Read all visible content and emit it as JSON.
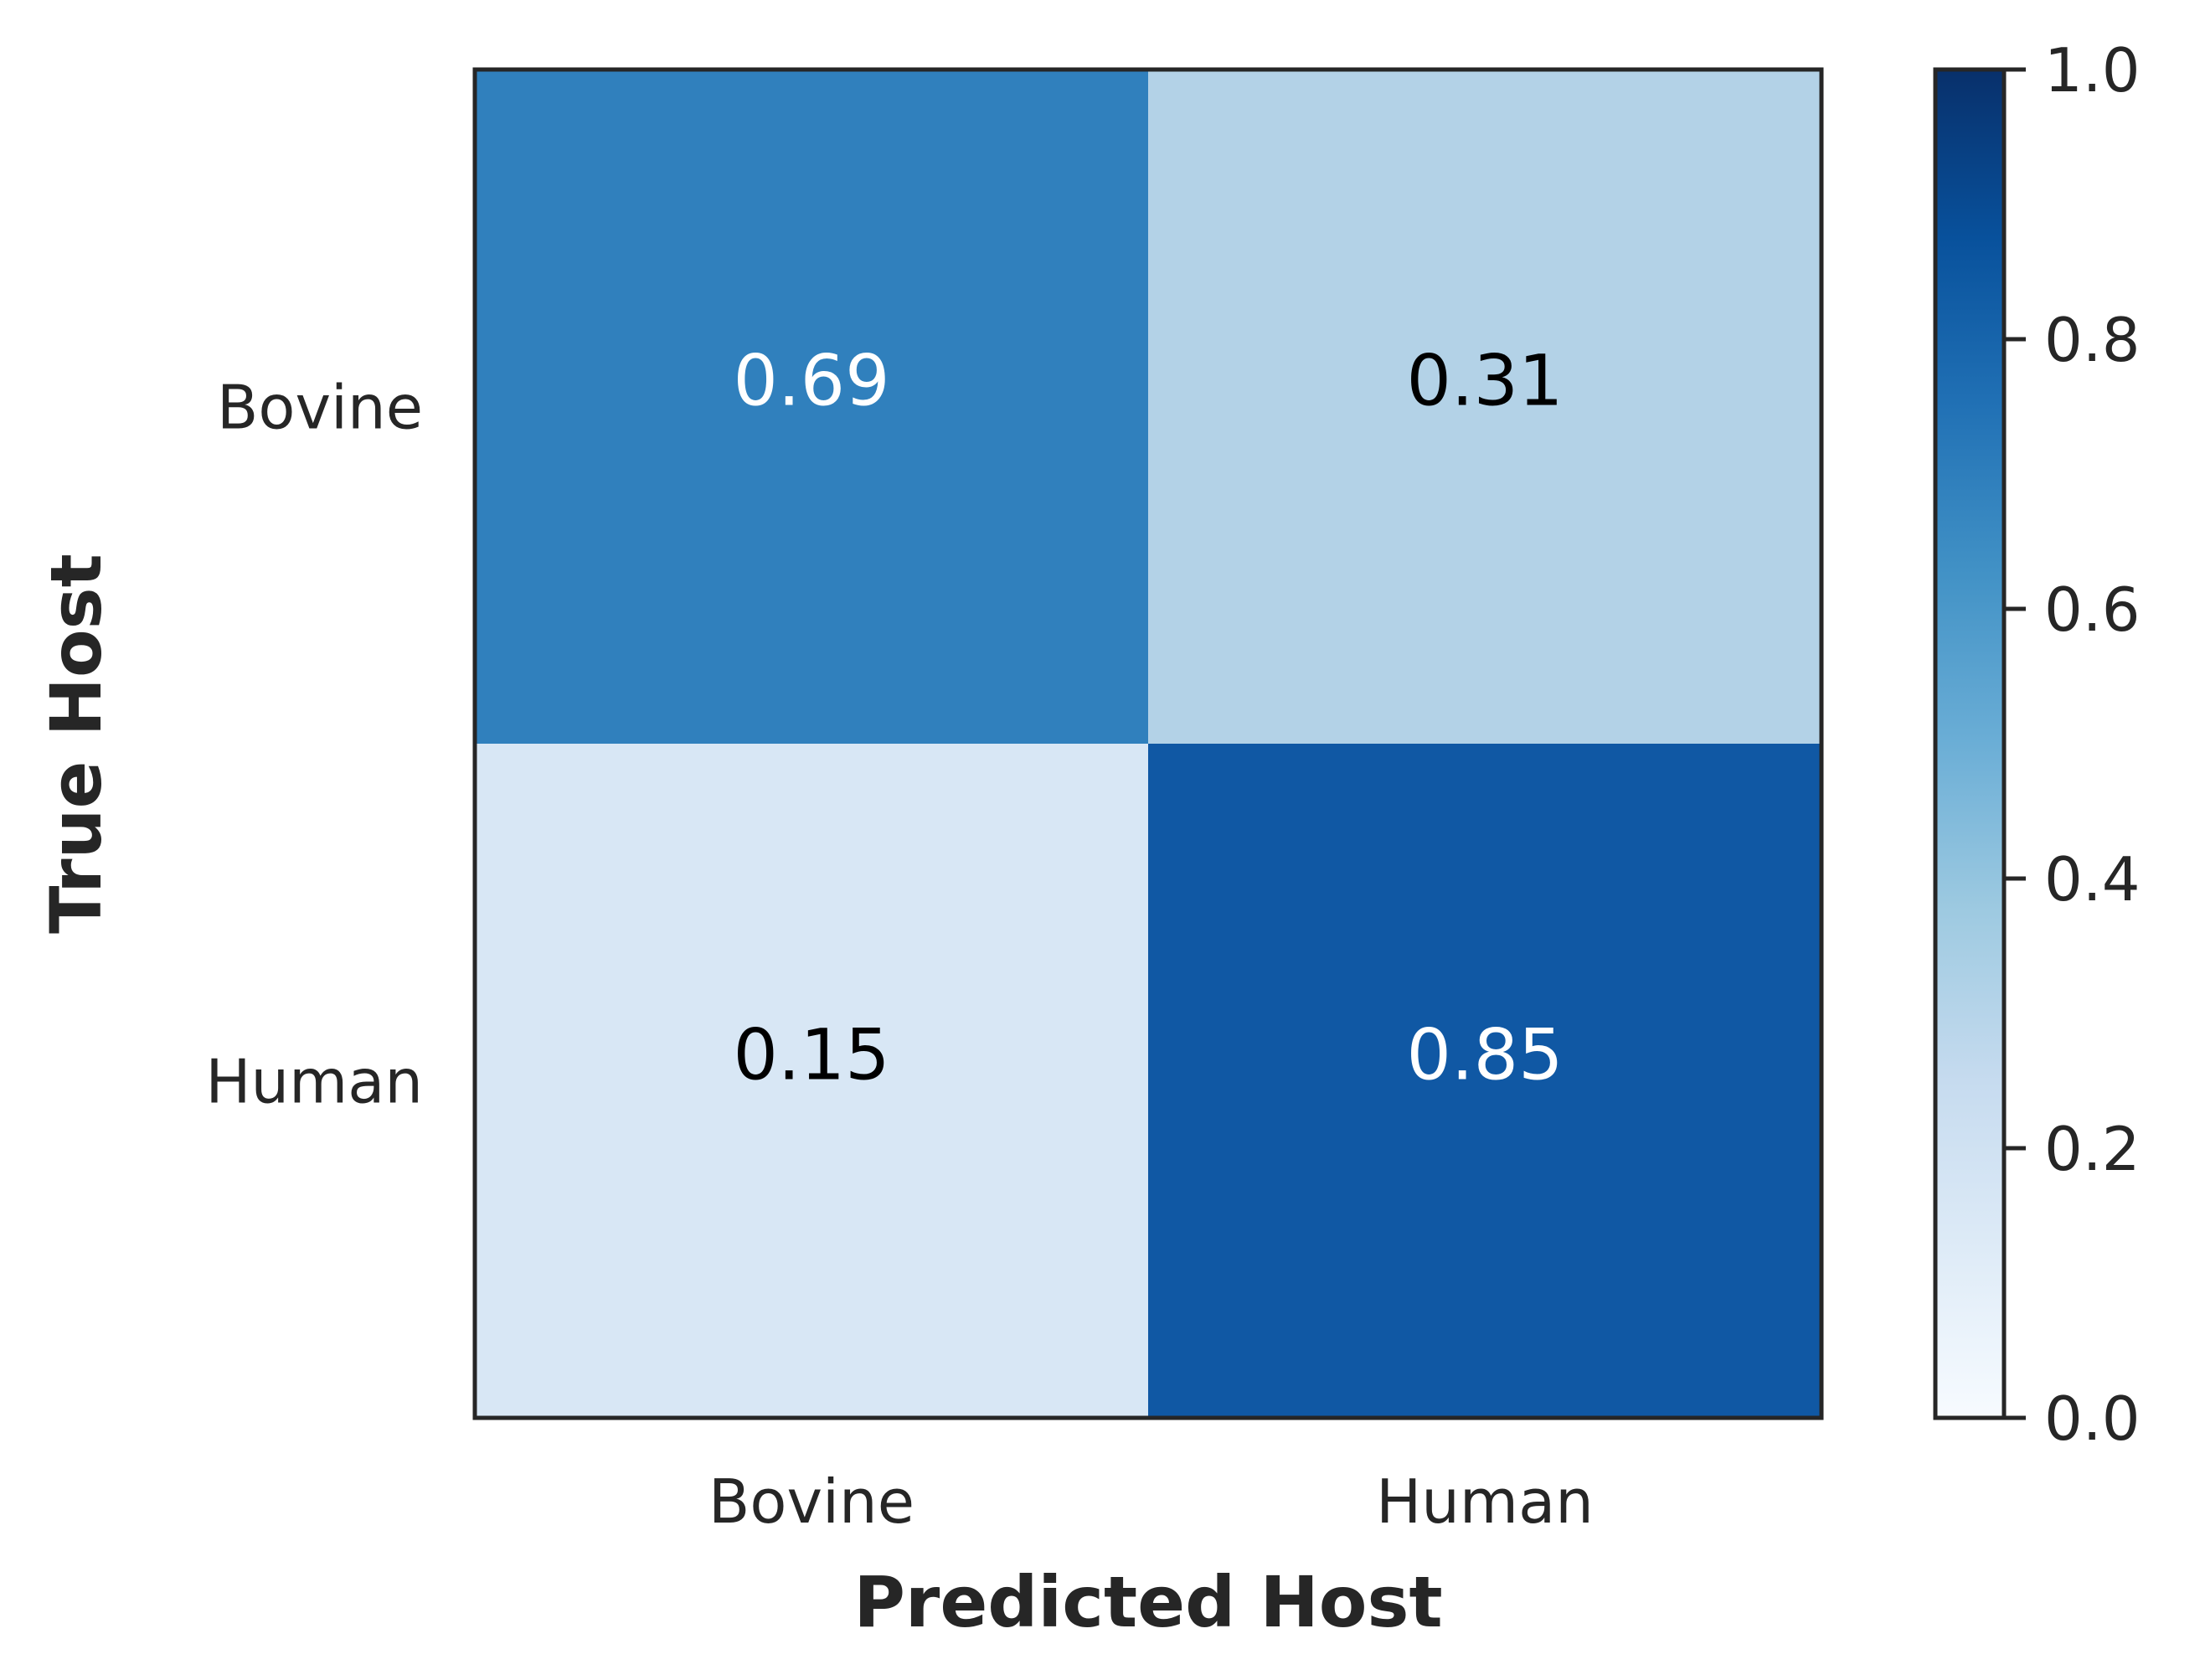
{
  "chart_data": {
    "type": "heatmap",
    "x_categories": [
      "Bovine",
      "Human"
    ],
    "y_categories": [
      "Bovine",
      "Human"
    ],
    "values": [
      [
        0.69,
        0.31
      ],
      [
        0.15,
        0.85
      ]
    ],
    "value_labels": [
      [
        "0.69",
        "0.31"
      ],
      [
        "0.15",
        "0.85"
      ]
    ],
    "xlabel": "Predicted Host",
    "ylabel": "True Host",
    "colormap": "Blues",
    "colorbar": {
      "range": [
        0.0,
        1.0
      ],
      "ticks": [
        0.0,
        0.2,
        0.4,
        0.6,
        0.8,
        1.0
      ],
      "tick_labels": [
        "0.0",
        "0.2",
        "0.4",
        "0.6",
        "0.8",
        "1.0"
      ]
    },
    "cell_colors": [
      [
        "#3080bd",
        "#b3d2e7"
      ],
      [
        "#d8e7f5",
        "#1058a4"
      ]
    ],
    "text_colors": [
      [
        "#ffffff",
        "#000000"
      ],
      [
        "#000000",
        "#ffffff"
      ]
    ],
    "grid": false
  }
}
